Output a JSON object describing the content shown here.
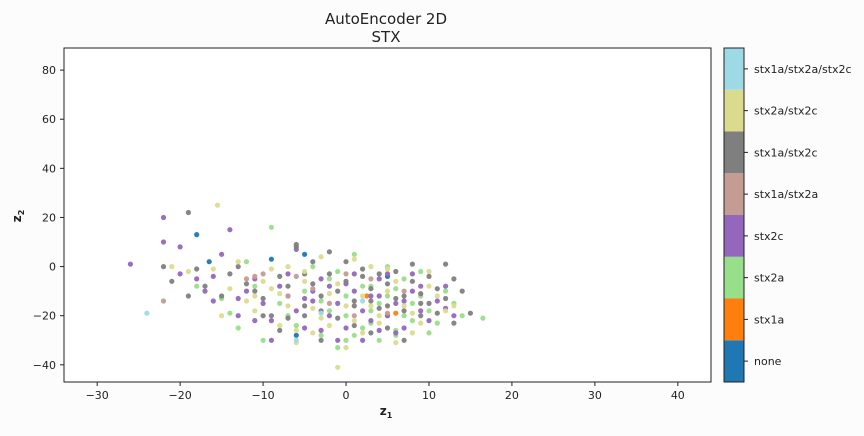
{
  "chart_data": {
    "type": "scatter",
    "title": "AutoEncoder 2D",
    "subtitle": "STX",
    "xlabel_main": "z",
    "xlabel_sub": "1",
    "ylabel_main": "z",
    "ylabel_sub": "2",
    "xlim": [
      -34,
      44
    ],
    "ylim": [
      -47,
      89
    ],
    "xticks": [
      -30,
      -20,
      -10,
      0,
      10,
      20,
      30,
      40
    ],
    "yticks": [
      -40,
      -20,
      0,
      20,
      40,
      60,
      80
    ],
    "grid": false,
    "legend": "colorbar-right",
    "categories": [
      "none",
      "stx1a",
      "stx2a",
      "stx2c",
      "stx1a/stx2a",
      "stx1a/stx2c",
      "stx2a/stx2c",
      "stx1a/stx2a/stx2c"
    ],
    "colors": [
      "#1f77b4",
      "#ff7f0e",
      "#98df8a",
      "#9467bd",
      "#c49c94",
      "#7f7f7f",
      "#dbdb8d",
      "#9edae5"
    ],
    "series": [
      {
        "name": "none",
        "points": [
          [
            -18,
            13
          ],
          [
            -16.5,
            2
          ],
          [
            -5,
            5
          ],
          [
            -9,
            3
          ],
          [
            5,
            -4
          ],
          [
            -6,
            -28
          ]
        ]
      },
      {
        "name": "stx1a",
        "points": [
          [
            6,
            -19
          ],
          [
            5,
            -20
          ],
          [
            2.5,
            -12
          ]
        ]
      },
      {
        "name": "stx2a",
        "points": [
          [
            -13,
            -25
          ],
          [
            -10,
            -30
          ],
          [
            -6,
            -24
          ],
          [
            -3,
            -28
          ],
          [
            0,
            -20
          ],
          [
            2,
            -25
          ],
          [
            4,
            -15
          ],
          [
            6,
            -26
          ],
          [
            8,
            -22
          ],
          [
            10,
            -18
          ],
          [
            12,
            -10
          ],
          [
            14,
            -20
          ],
          [
            16.5,
            -21
          ],
          [
            -2,
            -5
          ],
          [
            1,
            5
          ],
          [
            3,
            -8
          ],
          [
            5,
            -12
          ],
          [
            7,
            -5
          ],
          [
            9,
            -2
          ],
          [
            -8,
            -15
          ],
          [
            -11,
            -8
          ],
          [
            -9,
            16
          ],
          [
            -12,
            2
          ],
          [
            -15,
            -13
          ],
          [
            -4,
            0
          ],
          [
            0,
            -12
          ],
          [
            6,
            -28
          ],
          [
            -1,
            -33
          ],
          [
            4,
            -30
          ],
          [
            11,
            -23
          ],
          [
            3,
            -18
          ],
          [
            -7,
            -20
          ],
          [
            8,
            -15
          ],
          [
            2,
            -8
          ],
          [
            -3,
            -14
          ],
          [
            1,
            -28
          ],
          [
            5,
            0
          ],
          [
            10,
            -27
          ],
          [
            13,
            -15
          ],
          [
            -5,
            -10
          ],
          [
            -18,
            -8
          ],
          [
            -14,
            -19
          ],
          [
            -1,
            -2
          ],
          [
            7,
            -20
          ],
          [
            9,
            -12
          ],
          [
            3,
            -23
          ],
          [
            -2,
            -18
          ],
          [
            6,
            -9
          ],
          [
            0,
            -30
          ]
        ]
      },
      {
        "name": "stx2c",
        "points": [
          [
            -26,
            1
          ],
          [
            -22,
            20
          ],
          [
            -22,
            10
          ],
          [
            -20,
            8
          ],
          [
            -18,
            -5
          ],
          [
            -17,
            -10
          ],
          [
            -16,
            -14
          ],
          [
            -14,
            15
          ],
          [
            -13,
            -20
          ],
          [
            -12,
            -10
          ],
          [
            -11,
            -5
          ],
          [
            -10,
            -15
          ],
          [
            -9,
            -22
          ],
          [
            -8,
            -8
          ],
          [
            -7,
            -12
          ],
          [
            -6,
            -18
          ],
          [
            -5,
            -25
          ],
          [
            -4,
            -10
          ],
          [
            -3,
            -5
          ],
          [
            -2,
            -20
          ],
          [
            -1,
            -15
          ],
          [
            0,
            -25
          ],
          [
            1,
            -10
          ],
          [
            2,
            -18
          ],
          [
            3,
            -22
          ],
          [
            4,
            -12
          ],
          [
            5,
            -20
          ],
          [
            6,
            -15
          ],
          [
            7,
            -25
          ],
          [
            8,
            -10
          ],
          [
            9,
            -18
          ],
          [
            10,
            -22
          ],
          [
            11,
            -14
          ],
          [
            12,
            -8
          ],
          [
            13,
            -20
          ],
          [
            -20,
            -3
          ],
          [
            -15,
            5
          ],
          [
            -6,
            7
          ],
          [
            -4,
            -14
          ],
          [
            -3,
            -26
          ],
          [
            1,
            -3
          ],
          [
            2,
            -30
          ],
          [
            4,
            -5
          ],
          [
            6,
            -27
          ],
          [
            8,
            -3
          ],
          [
            -9,
            -30
          ],
          [
            -11,
            -22
          ],
          [
            -13,
            -13
          ],
          [
            -16,
            -4
          ],
          [
            0,
            -7
          ],
          [
            3,
            -12
          ],
          [
            5,
            -3
          ],
          [
            -1,
            -30
          ],
          [
            7,
            -14
          ],
          [
            9,
            -8
          ],
          [
            -7,
            -3
          ],
          [
            -5,
            -13
          ],
          [
            12,
            -17
          ],
          [
            -2,
            -8
          ],
          [
            4,
            -26
          ]
        ]
      },
      {
        "name": "stx1a/stx2a",
        "points": [
          [
            -22,
            -14
          ],
          [
            -12,
            -5
          ],
          [
            -11,
            -4
          ],
          [
            -10,
            -3
          ],
          [
            -7,
            -12
          ],
          [
            -4,
            -9
          ],
          [
            -2,
            -15
          ],
          [
            1,
            -20
          ],
          [
            3,
            -5
          ],
          [
            5,
            -19
          ],
          [
            7,
            -10
          ],
          [
            0,
            -3
          ],
          [
            -6,
            -4
          ]
        ]
      },
      {
        "name": "stx1a/stx2c",
        "points": [
          [
            -19,
            22
          ],
          [
            -22,
            0
          ],
          [
            -21,
            -6
          ],
          [
            -19,
            -12
          ],
          [
            -17,
            -8
          ],
          [
            -14,
            -3
          ],
          [
            -13,
            0
          ],
          [
            -12,
            -7
          ],
          [
            -11,
            -10
          ],
          [
            -10,
            -13
          ],
          [
            -9,
            -20
          ],
          [
            -8,
            -4
          ],
          [
            -7,
            -8
          ],
          [
            -6,
            9
          ],
          [
            -5,
            -3
          ],
          [
            -4,
            -7
          ],
          [
            -3,
            -12
          ],
          [
            -2,
            -3
          ],
          [
            -1,
            -10
          ],
          [
            0,
            -6
          ],
          [
            1,
            -14
          ],
          [
            2,
            -4
          ],
          [
            3,
            -9
          ],
          [
            4,
            -17
          ],
          [
            5,
            -7
          ],
          [
            6,
            -13
          ],
          [
            7,
            -18
          ],
          [
            8,
            -6
          ],
          [
            9,
            -11
          ],
          [
            10,
            -15
          ],
          [
            11,
            -9
          ],
          [
            12,
            -13
          ],
          [
            13,
            -5
          ],
          [
            15,
            -19
          ],
          [
            -6,
            8
          ],
          [
            -5,
            -20
          ],
          [
            -3,
            -30
          ],
          [
            1,
            -24
          ],
          [
            3,
            -27
          ],
          [
            5,
            -25
          ],
          [
            7,
            -30
          ],
          [
            9,
            -20
          ],
          [
            11,
            -19
          ],
          [
            13,
            -23
          ],
          [
            -8,
            -26
          ],
          [
            -10,
            -20
          ],
          [
            -15,
            -12
          ],
          [
            -18,
            -1
          ],
          [
            0,
            2
          ],
          [
            2,
            -1
          ],
          [
            4,
            -3
          ],
          [
            6,
            -2
          ],
          [
            8,
            1
          ],
          [
            10,
            -4
          ],
          [
            12,
            1
          ],
          [
            14,
            -10
          ],
          [
            -4,
            2
          ],
          [
            -2,
            6
          ],
          [
            1,
            -16
          ],
          [
            3,
            -14
          ],
          [
            5,
            -16
          ],
          [
            7,
            -12
          ],
          [
            9,
            -15
          ],
          [
            -1,
            -21
          ],
          [
            -3,
            -18
          ],
          [
            -5,
            -16
          ],
          [
            -7,
            -21
          ]
        ]
      },
      {
        "name": "stx2a/stx2c",
        "points": [
          [
            -15.5,
            25
          ],
          [
            -21,
            0
          ],
          [
            -19,
            -2
          ],
          [
            -15,
            -20
          ],
          [
            -14,
            -9
          ],
          [
            -12,
            -14
          ],
          [
            -11,
            -18
          ],
          [
            -10,
            -6
          ],
          [
            -8,
            -11
          ],
          [
            -7,
            -16
          ],
          [
            -6,
            -26
          ],
          [
            -5,
            -6
          ],
          [
            -4,
            -17
          ],
          [
            -3,
            -21
          ],
          [
            -2,
            -11
          ],
          [
            -1,
            -7
          ],
          [
            0,
            -16
          ],
          [
            1,
            -22
          ],
          [
            2,
            -12
          ],
          [
            3,
            -16
          ],
          [
            4,
            -20
          ],
          [
            5,
            -10
          ],
          [
            6,
            -6
          ],
          [
            7,
            -16
          ],
          [
            8,
            -19
          ],
          [
            9,
            -23
          ],
          [
            10,
            -8
          ],
          [
            11,
            -12
          ],
          [
            12,
            -18
          ],
          [
            13,
            -16
          ],
          [
            -16,
            -1
          ],
          [
            -13,
            2
          ],
          [
            -9,
            -1
          ],
          [
            -8,
            -24
          ],
          [
            -6,
            -31
          ],
          [
            -4,
            -27
          ],
          [
            -2,
            -24
          ],
          [
            0,
            -33
          ],
          [
            2,
            -27
          ],
          [
            4,
            -23
          ],
          [
            6,
            -31
          ],
          [
            8,
            -27
          ],
          [
            -1,
            -41
          ],
          [
            10,
            -2
          ],
          [
            1,
            3
          ],
          [
            3,
            0
          ],
          [
            5,
            -1
          ],
          [
            -3,
            4
          ],
          [
            -5,
            -2
          ],
          [
            -7,
            0
          ],
          [
            -9,
            -9
          ],
          [
            -11,
            -12
          ]
        ]
      },
      {
        "name": "stx1a/stx2a/stx2c",
        "points": [
          [
            -24,
            -19
          ],
          [
            -6,
            -30
          ],
          [
            -3,
            -19
          ],
          [
            2,
            -14
          ]
        ]
      }
    ]
  }
}
